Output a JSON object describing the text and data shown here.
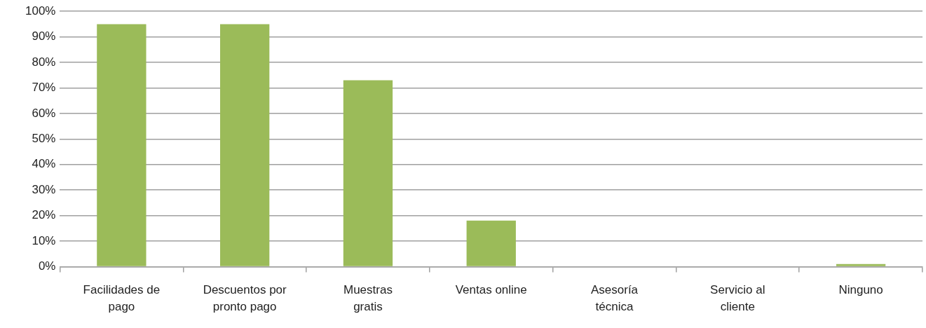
{
  "chart_data": {
    "type": "bar",
    "categories": [
      "Facilidades de pago",
      "Descuentos por pronto pago",
      "Muestras gratis",
      "Ventas online",
      "Asesoría técnica",
      "Servicio al cliente",
      "Ninguno"
    ],
    "values": [
      95,
      95,
      73,
      18,
      0,
      0,
      1
    ],
    "color": "#9bbb59",
    "ylim": [
      0,
      100
    ],
    "yticks": [
      {
        "value": 0,
        "label": "0%"
      },
      {
        "value": 10,
        "label": "10%"
      },
      {
        "value": 20,
        "label": "20%"
      },
      {
        "value": 30,
        "label": "30%"
      },
      {
        "value": 40,
        "label": "40%"
      },
      {
        "value": 50,
        "label": "50%"
      },
      {
        "value": 60,
        "label": "60%"
      },
      {
        "value": 70,
        "label": "70%"
      },
      {
        "value": 80,
        "label": "80%"
      },
      {
        "value": 90,
        "label": "90%"
      },
      {
        "value": 100,
        "label": "100%"
      }
    ],
    "grid": "y",
    "legend": false
  }
}
